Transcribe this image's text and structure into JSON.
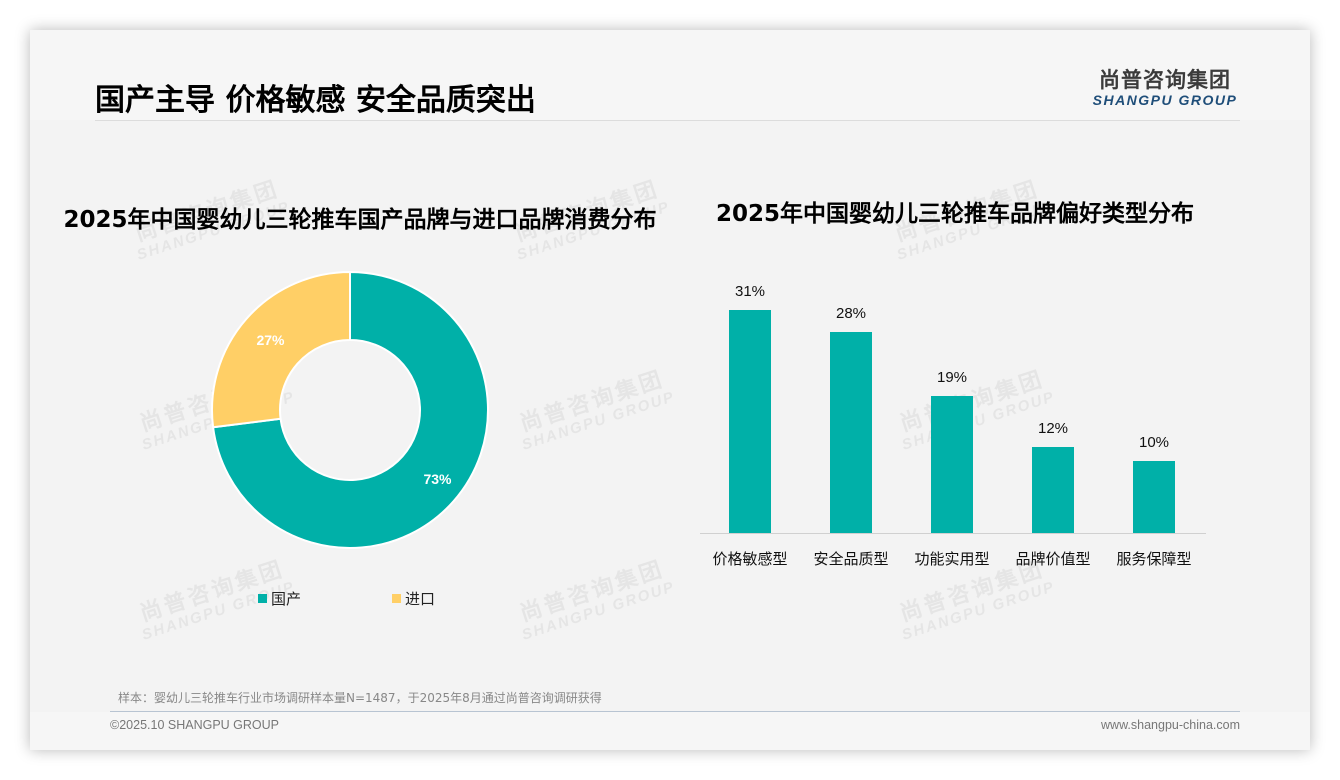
{
  "slide": {
    "title": "国产主导 价格敏感 安全品质突出",
    "logo": {
      "cn": "尚普咨询集团",
      "en": "SHANGPU GROUP"
    },
    "watermark": {
      "cn": "尚普咨询集团",
      "en": "SHANGPU GROUP"
    },
    "sample_note": "样本：婴幼儿三轮推车行业市场调研样本量N=1487，于2025年8月通过尚普咨询调研获得",
    "copyright": "©2025.10 SHANGPU GROUP",
    "website": "www.shangpu-china.com"
  },
  "colors": {
    "teal": "#00b0a8",
    "yellow": "#ffcf66",
    "logo_blue": "#1f4e79"
  },
  "chart_data": [
    {
      "type": "pie",
      "subtype": "donut",
      "title": "2025年中国婴幼儿三轮推车国产品牌与进口品牌消费分布",
      "categories": [
        "国产",
        "进口"
      ],
      "values": [
        73,
        27
      ],
      "labels": [
        "73%",
        "27%"
      ],
      "colors": [
        "#00b0a8",
        "#ffcf66"
      ],
      "legend_position": "bottom"
    },
    {
      "type": "bar",
      "title": "2025年中国婴幼儿三轮推车品牌偏好类型分布",
      "categories": [
        "价格敏感型",
        "安全品质型",
        "功能实用型",
        "品牌价值型",
        "服务保障型"
      ],
      "values": [
        31,
        28,
        19,
        12,
        10
      ],
      "labels": [
        "31%",
        "28%",
        "19%",
        "12%",
        "10%"
      ],
      "xlabel": "",
      "ylabel": "",
      "unit": "%",
      "grid": false,
      "color": "#00b0a8"
    }
  ]
}
